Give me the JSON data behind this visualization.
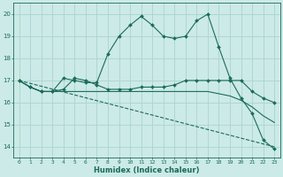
{
  "xlabel": "Humidex (Indice chaleur)",
  "bg_color": "#cceae7",
  "grid_color": "#aad4d0",
  "line_color": "#1a6b5a",
  "xlim": [
    -0.5,
    23.5
  ],
  "ylim": [
    13.5,
    20.5
  ],
  "yticks": [
    14,
    15,
    16,
    17,
    18,
    19,
    20
  ],
  "xticks": [
    0,
    1,
    2,
    3,
    4,
    5,
    6,
    7,
    8,
    9,
    10,
    11,
    12,
    13,
    14,
    15,
    16,
    17,
    18,
    19,
    20,
    21,
    22,
    23
  ],
  "series": [
    {
      "x": [
        0,
        1,
        2,
        3,
        4,
        5,
        6,
        7,
        8,
        9,
        10,
        11,
        12,
        13,
        14,
        15,
        16,
        17,
        18,
        19,
        20,
        21,
        22,
        23
      ],
      "y": [
        17.0,
        16.7,
        16.5,
        16.5,
        17.1,
        17.0,
        16.9,
        16.9,
        18.2,
        19.0,
        19.5,
        19.9,
        19.5,
        19.0,
        18.9,
        19.0,
        19.7,
        20.0,
        18.5,
        17.1,
        16.2,
        15.5,
        14.3,
        13.9
      ],
      "marker": "D",
      "markersize": 2.0,
      "linestyle": "-"
    },
    {
      "x": [
        0,
        1,
        2,
        3,
        4,
        5,
        6,
        7,
        8,
        9,
        10,
        11,
        12,
        13,
        14,
        15,
        16,
        17,
        18,
        19,
        20,
        21,
        22,
        23
      ],
      "y": [
        17.0,
        16.7,
        16.5,
        16.5,
        16.6,
        17.1,
        17.0,
        16.8,
        16.6,
        16.6,
        16.6,
        16.7,
        16.7,
        16.7,
        16.8,
        17.0,
        17.0,
        17.0,
        17.0,
        17.0,
        17.0,
        16.5,
        16.2,
        16.0
      ],
      "marker": "D",
      "markersize": 2.0,
      "linestyle": "-"
    },
    {
      "x": [
        0,
        1,
        2,
        3,
        4,
        5,
        6,
        7,
        8,
        9,
        10,
        11,
        12,
        13,
        14,
        15,
        16,
        17,
        18,
        19,
        20,
        21,
        22,
        23
      ],
      "y": [
        17.0,
        16.7,
        16.5,
        16.5,
        16.5,
        16.5,
        16.5,
        16.5,
        16.5,
        16.5,
        16.5,
        16.5,
        16.5,
        16.5,
        16.5,
        16.5,
        16.5,
        16.5,
        16.4,
        16.3,
        16.1,
        15.8,
        15.4,
        15.1
      ],
      "marker": null,
      "markersize": 0,
      "linestyle": "-"
    },
    {
      "x": [
        0,
        23
      ],
      "y": [
        17.0,
        14.0
      ],
      "marker": null,
      "markersize": 0,
      "linestyle": "--"
    }
  ]
}
